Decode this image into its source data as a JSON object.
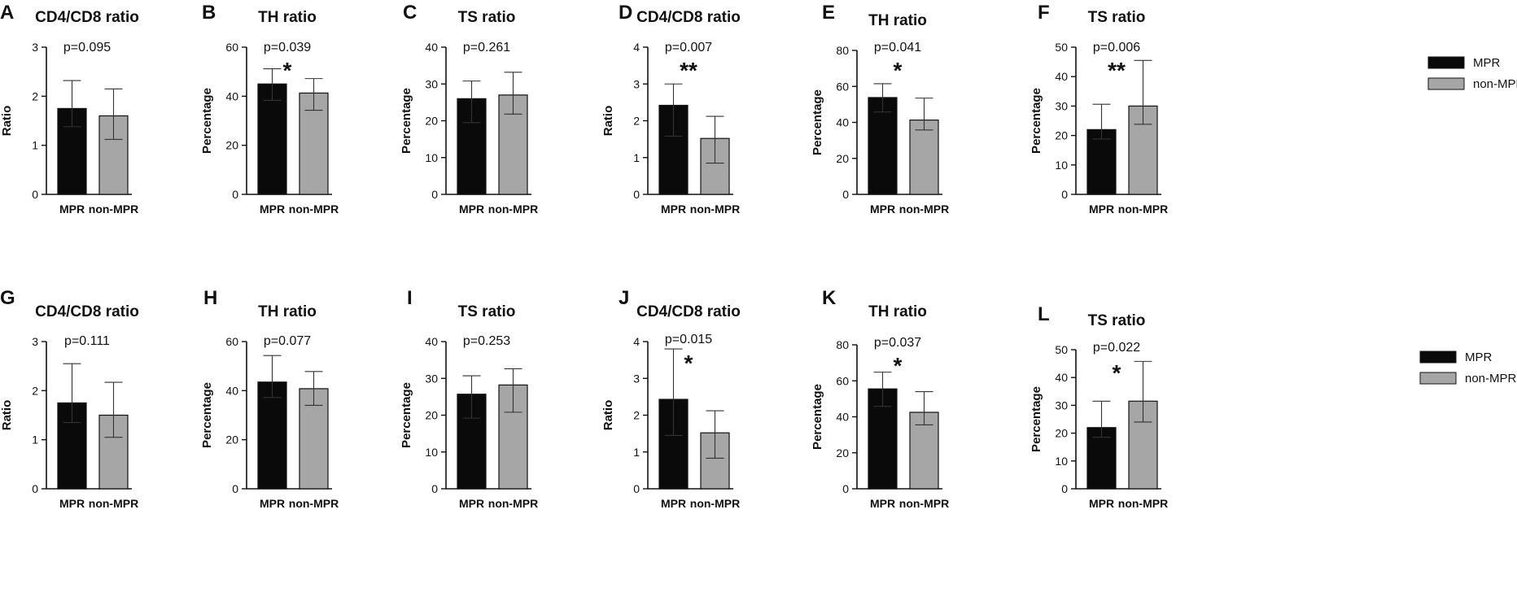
{
  "legend": [
    {
      "name": "MPR",
      "color": "#0a0a0a"
    },
    {
      "name": "non-MPR",
      "color": "#a6a6a6"
    }
  ],
  "chart_data": [
    {
      "panel": "A",
      "type": "bar",
      "title": "CD4/CD8 ratio",
      "ylabel": "Ratio",
      "categories": [
        "MPR",
        "non-MPR"
      ],
      "values": [
        1.75,
        1.6
      ],
      "error_low": [
        1.38,
        1.12
      ],
      "error_high": [
        2.32,
        2.15
      ],
      "ylim": [
        0,
        3
      ],
      "yticks": [
        0,
        1,
        2,
        3
      ],
      "p_value": "p=0.095",
      "significance": ""
    },
    {
      "panel": "B",
      "type": "bar",
      "title": "TH ratio",
      "ylabel": "Percentage",
      "categories": [
        "MPR",
        "non-MPR"
      ],
      "values": [
        45,
        41.3
      ],
      "error_low": [
        38.3,
        34.3
      ],
      "error_high": [
        51.2,
        47.2
      ],
      "ylim": [
        0,
        60
      ],
      "yticks": [
        0,
        20,
        40,
        60
      ],
      "p_value": "p=0.039",
      "significance": "*"
    },
    {
      "panel": "C",
      "type": "bar",
      "title": "TS ratio",
      "ylabel": "Percentage",
      "categories": [
        "MPR",
        "non-MPR"
      ],
      "values": [
        26,
        27
      ],
      "error_low": [
        19.5,
        21.8
      ],
      "error_high": [
        30.8,
        33.2
      ],
      "ylim": [
        0,
        40
      ],
      "yticks": [
        0,
        10,
        20,
        30,
        40
      ],
      "p_value": "p=0.261",
      "significance": ""
    },
    {
      "panel": "D",
      "type": "bar",
      "title": "CD4/CD8 ratio",
      "ylabel": "Ratio",
      "categories": [
        "MPR",
        "non-MPR"
      ],
      "values": [
        2.42,
        1.52
      ],
      "error_low": [
        1.58,
        0.85
      ],
      "error_high": [
        3.0,
        2.12
      ],
      "ylim": [
        0,
        4
      ],
      "yticks": [
        0,
        1,
        2,
        3,
        4
      ],
      "p_value": "p=0.007",
      "significance": "**"
    },
    {
      "panel": "E",
      "type": "bar",
      "title": "TH ratio",
      "ylabel": "Percentage",
      "categories": [
        "MPR",
        "non-MPR"
      ],
      "values": [
        53.8,
        41.3
      ],
      "error_low": [
        45.8,
        35.8
      ],
      "error_high": [
        61.5,
        53.5
      ],
      "ylim": [
        0,
        80
      ],
      "yticks": [
        0,
        20,
        40,
        60,
        80
      ],
      "p_value": "p=0.041",
      "significance": "*"
    },
    {
      "panel": "F",
      "type": "bar",
      "title": "TS ratio",
      "ylabel": "Percentage",
      "categories": [
        "MPR",
        "non-MPR"
      ],
      "values": [
        22,
        30
      ],
      "error_low": [
        18.8,
        23.8
      ],
      "error_high": [
        30.6,
        45.5
      ],
      "ylim": [
        0,
        50
      ],
      "yticks": [
        0,
        10,
        20,
        30,
        40,
        50
      ],
      "p_value": "p=0.006",
      "significance": "**"
    },
    {
      "panel": "G",
      "type": "bar",
      "title": "CD4/CD8 ratio",
      "ylabel": "Ratio",
      "categories": [
        "MPR",
        "non-MPR"
      ],
      "values": [
        1.75,
        1.5
      ],
      "error_low": [
        1.35,
        1.05
      ],
      "error_high": [
        2.55,
        2.17
      ],
      "ylim": [
        0,
        3
      ],
      "yticks": [
        0,
        1,
        2,
        3
      ],
      "p_value": "p=0.111",
      "significance": ""
    },
    {
      "panel": "H",
      "type": "bar",
      "title": "TH ratio",
      "ylabel": "Percentage",
      "categories": [
        "MPR",
        "non-MPR"
      ],
      "values": [
        43.5,
        40.8
      ],
      "error_low": [
        37.2,
        34.0
      ],
      "error_high": [
        54.3,
        47.8
      ],
      "ylim": [
        0,
        60
      ],
      "yticks": [
        0,
        20,
        40,
        60
      ],
      "p_value": "p=0.077",
      "significance": ""
    },
    {
      "panel": "I",
      "type": "bar",
      "title": "TS ratio",
      "ylabel": "Percentage",
      "categories": [
        "MPR",
        "non-MPR"
      ],
      "values": [
        25.7,
        28.2
      ],
      "error_low": [
        19.2,
        20.8
      ],
      "error_high": [
        30.7,
        32.6
      ],
      "ylim": [
        0,
        40
      ],
      "yticks": [
        0,
        10,
        20,
        30,
        40
      ],
      "p_value": "p=0.253",
      "significance": ""
    },
    {
      "panel": "J",
      "type": "bar",
      "title": "CD4/CD8 ratio",
      "ylabel": "Ratio",
      "categories": [
        "MPR",
        "non-MPR"
      ],
      "values": [
        2.43,
        1.52
      ],
      "error_low": [
        1.45,
        0.83
      ],
      "error_high": [
        3.8,
        2.12
      ],
      "ylim": [
        0,
        4
      ],
      "yticks": [
        0,
        1,
        2,
        3,
        4
      ],
      "p_value": "p=0.015",
      "significance": "*"
    },
    {
      "panel": "K",
      "type": "bar",
      "title": "TH ratio",
      "ylabel": "Percentage",
      "categories": [
        "MPR",
        "non-MPR"
      ],
      "values": [
        55.5,
        42.5
      ],
      "error_low": [
        45.8,
        35.5
      ],
      "error_high": [
        64.8,
        54.0
      ],
      "ylim": [
        0,
        80
      ],
      "yticks": [
        0,
        20,
        40,
        60,
        80
      ],
      "p_value": "p=0.037",
      "significance": "*"
    },
    {
      "panel": "L",
      "type": "bar",
      "title": "TS ratio",
      "ylabel": "Percentage",
      "categories": [
        "MPR",
        "non-MPR"
      ],
      "values": [
        22,
        31.5
      ],
      "error_low": [
        18.5,
        24.0
      ],
      "error_high": [
        31.5,
        45.8
      ],
      "ylim": [
        0,
        50
      ],
      "yticks": [
        0,
        10,
        20,
        30,
        40,
        50
      ],
      "p_value": "p=0.022",
      "significance": "*"
    }
  ]
}
